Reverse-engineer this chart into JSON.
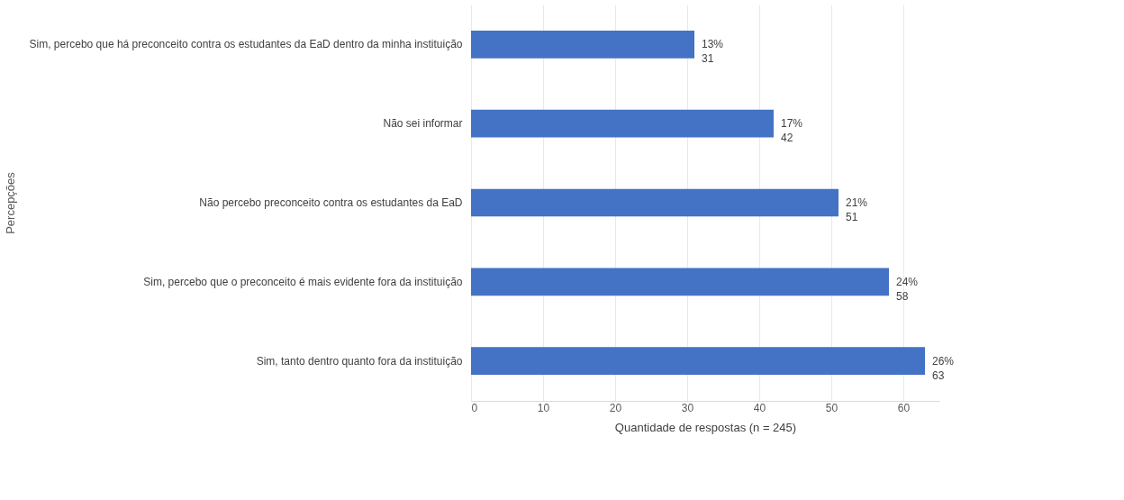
{
  "chart_data": {
    "type": "bar",
    "orientation": "horizontal",
    "xlabel": "Quantidade de respostas (n = 245)",
    "ylabel": "Percepções",
    "categories": [
      "Sim, percebo que há preconceito contra os estudantes da EaD dentro da minha instituição",
      "Não sei informar",
      "Não percebo preconceito contra os estudantes da EaD",
      "Sim, percebo que o preconceito é mais evidente fora da instituição",
      "Sim, tanto dentro quanto fora da instituição"
    ],
    "values": [
      31,
      42,
      51,
      58,
      63
    ],
    "value_labels": [
      "13%\n31",
      "17%\n42",
      "21%\n51",
      "24%\n58",
      "26%\n63"
    ],
    "color": "#4472c4",
    "xlim": [
      0,
      65
    ],
    "xticks": [
      0,
      10,
      20,
      30,
      40,
      50,
      60
    ],
    "grid": "x"
  }
}
